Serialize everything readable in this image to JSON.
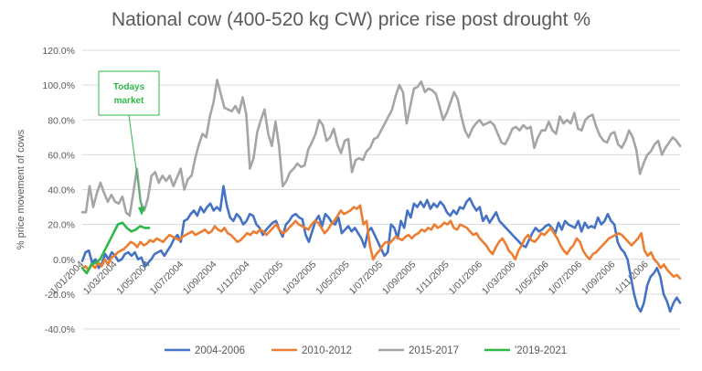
{
  "chart_data": {
    "type": "line",
    "title": "National cow (400-520 kg CW) price rise post drought %",
    "ylabel": "% price movement of cows",
    "xlabel": "",
    "ylim": [
      -40,
      120
    ],
    "y_ticks": [
      "-40.0%",
      "-20.0%",
      "0.0%",
      "20.0%",
      "40.0%",
      "60.0%",
      "80.0%",
      "100.0%",
      "120.0%"
    ],
    "x_ticks": [
      "1/01/2004",
      "1/03/2004",
      "1/05/2004",
      "1/07/2004",
      "1/09/2004",
      "1/11/2004",
      "1/01/2005",
      "1/03/2005",
      "1/05/2005",
      "1/07/2005",
      "1/09/2005",
      "1/11/2005",
      "1/01/2006",
      "1/03/2006",
      "1/05/2006",
      "1/07/2006",
      "1/09/2006",
      "1/11/2006"
    ],
    "x_range_weeks": [
      0,
      152
    ],
    "grid": true,
    "legend_position": "bottom",
    "annotation": {
      "text_lines": [
        "Todays",
        "market"
      ],
      "color": "#2eb84a"
    },
    "series": [
      {
        "name": "2004-2006",
        "color": "#4472c4",
        "values": [
          -1,
          4,
          5,
          -2,
          0,
          -5,
          -2,
          3,
          0,
          4,
          2,
          -1,
          0,
          3,
          4,
          2,
          4,
          0,
          1,
          -4,
          -2,
          0,
          3,
          4,
          5,
          2,
          5,
          8,
          12,
          14,
          10,
          22,
          23,
          26,
          28,
          25,
          30,
          27,
          30,
          32,
          28,
          30,
          28,
          42,
          31,
          24,
          22,
          26,
          24,
          20,
          22,
          26,
          25,
          20,
          18,
          14,
          17,
          19,
          21,
          22,
          17,
          13,
          20,
          22,
          25,
          26,
          24,
          23,
          14,
          10,
          16,
          22,
          25,
          19,
          26,
          24,
          21,
          20,
          24,
          15,
          17,
          19,
          16,
          18,
          15,
          12,
          7,
          16,
          18,
          14,
          10,
          6,
          2,
          4,
          20,
          18,
          12,
          22,
          18,
          28,
          24,
          32,
          30,
          33,
          30,
          34,
          29,
          32,
          30,
          33,
          31,
          27,
          25,
          28,
          26,
          30,
          29,
          33,
          35,
          31,
          28,
          30,
          22,
          25,
          21,
          24,
          27,
          22,
          20,
          18,
          16,
          14,
          12,
          10,
          8,
          7,
          11,
          15,
          18,
          16,
          17,
          19,
          20,
          18,
          15,
          21,
          17,
          22,
          20,
          19,
          18,
          22,
          16,
          21,
          18,
          19,
          18,
          24,
          20,
          22,
          26,
          22,
          20,
          10,
          6,
          4,
          0,
          -10,
          -20,
          -27,
          -30,
          -25,
          -15,
          -10,
          -8,
          -5,
          -10,
          -20,
          -24,
          -30,
          -25,
          -22,
          -25
        ]
      },
      {
        "name": "2010-2012",
        "color": "#ed7d31",
        "values": [
          -5,
          -4,
          -6,
          -3,
          -5,
          -2,
          -4,
          0,
          -3,
          1,
          2,
          4,
          5,
          6,
          8,
          10,
          9,
          7,
          10,
          8,
          9,
          11,
          10,
          12,
          11,
          10,
          12,
          14,
          13,
          12,
          11,
          13,
          14,
          15,
          16,
          14,
          15,
          16,
          17,
          15,
          16,
          19,
          17,
          16,
          18,
          15,
          14,
          12,
          10,
          11,
          13,
          15,
          14,
          16,
          15,
          17,
          16,
          14,
          16,
          18,
          20,
          17,
          15,
          16,
          18,
          20,
          22,
          20,
          19,
          18,
          17,
          20,
          22,
          21,
          18,
          15,
          17,
          20,
          22,
          25,
          28,
          26,
          27,
          28,
          30,
          29,
          31,
          20,
          22,
          8,
          0,
          3,
          5,
          8,
          10,
          9,
          11,
          13,
          12,
          11,
          13,
          14,
          12,
          14,
          15,
          17,
          16,
          18,
          17,
          20,
          18,
          19,
          21,
          20,
          22,
          18,
          17,
          20,
          19,
          18,
          16,
          14,
          15,
          12,
          10,
          8,
          5,
          3,
          7,
          10,
          12,
          9,
          5,
          3,
          0,
          5,
          8,
          12,
          14,
          11,
          10,
          12,
          15,
          14,
          16,
          18,
          15,
          12,
          8,
          5,
          3,
          6,
          8,
          12,
          10,
          5,
          2,
          0,
          3,
          4,
          6,
          8,
          10,
          12,
          13,
          14,
          15,
          14,
          12,
          10,
          8,
          10,
          12,
          15,
          5,
          2,
          4,
          0,
          -2,
          -5,
          -3,
          -6,
          -8,
          -10,
          -9,
          -11
        ]
      },
      {
        "name": "2015-2017",
        "color": "#a5a5a5",
        "values": [
          27,
          27,
          42,
          30,
          38,
          44,
          38,
          33,
          37,
          33,
          32,
          36,
          27,
          25,
          38,
          52,
          33,
          28,
          35,
          48,
          50,
          44,
          48,
          45,
          48,
          42,
          47,
          52,
          40,
          46,
          48,
          58,
          66,
          72,
          70,
          82,
          90,
          103,
          95,
          87,
          86,
          85,
          88,
          84,
          93,
          83,
          52,
          58,
          73,
          80,
          86,
          72,
          65,
          79,
          65,
          42,
          45,
          50,
          52,
          55,
          53,
          54,
          63,
          67,
          72,
          80,
          77,
          68,
          70,
          75,
          66,
          61,
          68,
          69,
          50,
          57,
          58,
          57,
          62,
          64,
          69,
          70,
          74,
          78,
          82,
          86,
          94,
          100,
          96,
          78,
          88,
          98,
          99,
          102,
          96,
          98,
          97,
          95,
          88,
          80,
          84,
          90,
          96,
          92,
          82,
          74,
          70,
          75,
          78,
          80,
          77,
          78,
          79,
          77,
          72,
          67,
          66,
          70,
          75,
          76,
          74,
          77,
          75,
          76,
          64,
          70,
          74,
          74,
          79,
          74,
          72,
          82,
          78,
          80,
          78,
          84,
          75,
          74,
          80,
          82,
          83,
          76,
          71,
          68,
          67,
          72,
          73,
          66,
          64,
          68,
          74,
          70,
          63,
          49,
          55,
          60,
          62,
          66,
          68,
          60,
          64,
          67,
          70,
          68,
          65
        ]
      },
      {
        "name": "'2019-2021",
        "color": "#2eb84a",
        "values": [
          -5,
          -8,
          -3,
          -2,
          0,
          5,
          10,
          15,
          20,
          21,
          18,
          16,
          17,
          19,
          18,
          18
        ]
      }
    ]
  }
}
